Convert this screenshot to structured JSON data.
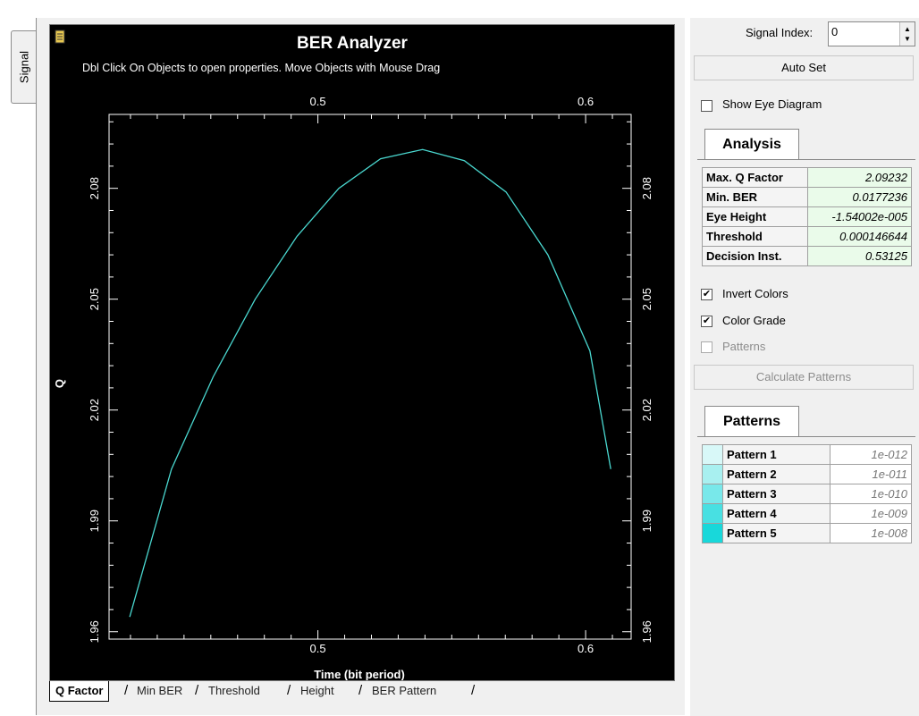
{
  "side_tab": {
    "label": "Signal"
  },
  "chart": {
    "title": "BER Analyzer",
    "subtitle": "Dbl Click On Objects to open properties.  Move Objects with Mouse Drag",
    "colors": {
      "background": "#000000",
      "line": "#4ad8d0",
      "text": "#ffffff"
    }
  },
  "chart_data": {
    "type": "line",
    "title": "BER Analyzer",
    "xlabel": "Time (bit period)",
    "ylabel": "Q",
    "xlim": [
      0.422,
      0.617
    ],
    "ylim": [
      1.958,
      2.1
    ],
    "x_ticks": [
      0.5,
      0.6
    ],
    "x_tick_labels": [
      "0.5",
      "0.6"
    ],
    "y_ticks": [
      1.96,
      1.99,
      2.02,
      2.05,
      2.08
    ],
    "y_tick_labels": [
      "1.96",
      "1.99",
      "2.02",
      "2.05",
      "2.08"
    ],
    "grid": false,
    "series": [
      {
        "x": [
          0.4297,
          0.4453,
          0.4609,
          0.4766,
          0.4922,
          0.5078,
          0.5234,
          0.5391,
          0.5547,
          0.5703,
          0.5859,
          0.6016,
          0.6094
        ],
        "y": [
          1.964,
          2.004,
          2.029,
          2.05,
          2.067,
          2.08,
          2.088,
          2.0905,
          2.0875,
          2.079,
          2.062,
          2.036,
          2.004
        ]
      }
    ]
  },
  "bottom_tabs": [
    {
      "label": "Q Factor"
    },
    {
      "label": "Min BER"
    },
    {
      "label": "Threshold"
    },
    {
      "label": "Height"
    },
    {
      "label": "BER Pattern"
    }
  ],
  "panel": {
    "signal_index_label": "Signal Index:",
    "signal_index_value": "0",
    "auto_set_label": "Auto Set",
    "show_eye_label": "Show Eye Diagram",
    "analysis_tab": "Analysis",
    "analysis_rows": [
      {
        "key": "Max. Q Factor",
        "value": "2.09232"
      },
      {
        "key": "Min. BER",
        "value": "0.0177236"
      },
      {
        "key": "Eye Height",
        "value": "-1.54002e-005"
      },
      {
        "key": "Threshold",
        "value": "0.000146644"
      },
      {
        "key": "Decision Inst.",
        "value": "0.53125"
      }
    ],
    "invert_colors_label": "Invert Colors",
    "invert_colors_checked": "✔",
    "color_grade_label": "Color Grade",
    "color_grade_checked": "✔",
    "patterns_label": "Patterns",
    "calc_patterns_label": "Calculate Patterns",
    "patterns_tab": "Patterns",
    "pattern_rows": [
      {
        "name": "Pattern 1",
        "value": "1e-012",
        "color": "#d8f8f8"
      },
      {
        "name": "Pattern 2",
        "value": "1e-011",
        "color": "#a8f0f0"
      },
      {
        "name": "Pattern 3",
        "value": "1e-010",
        "color": "#78e8ea"
      },
      {
        "name": "Pattern 4",
        "value": "1e-009",
        "color": "#48e0e2"
      },
      {
        "name": "Pattern 5",
        "value": "1e-008",
        "color": "#18d8da"
      }
    ]
  }
}
